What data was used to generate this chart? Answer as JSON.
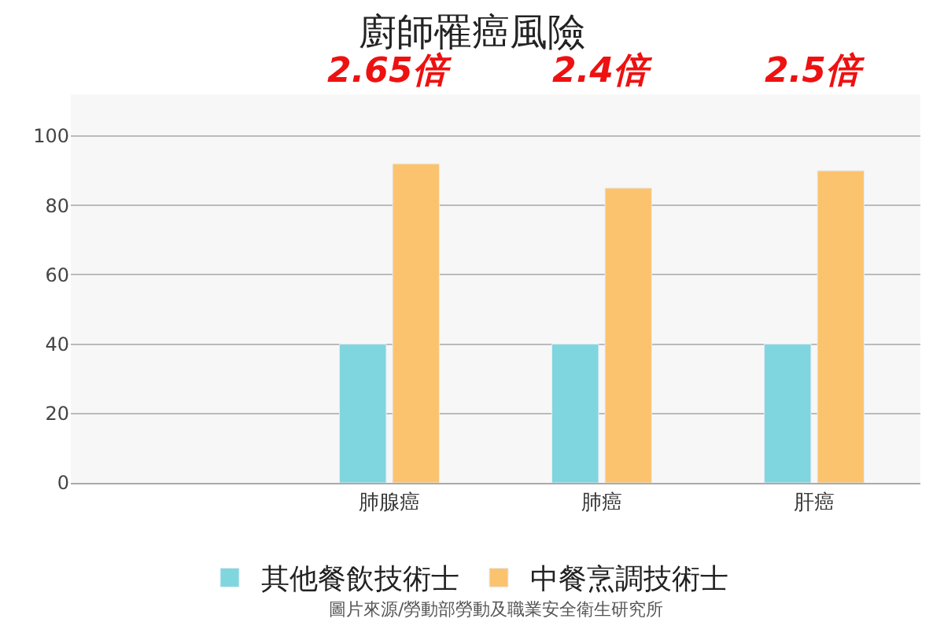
{
  "chart_data": {
    "type": "bar",
    "title": "廚師罹癌風險",
    "categories": [
      null,
      "肺腺癌",
      "肺癌",
      "肝癌"
    ],
    "series": [
      {
        "name": "其他餐飲技術士",
        "color": "#7fd6de",
        "values": [
          null,
          40,
          40,
          40
        ]
      },
      {
        "name": "中餐烹調技術士",
        "color": "#fcc36e",
        "values": [
          null,
          92,
          85,
          90
        ]
      }
    ],
    "ylim": [
      0,
      112
    ],
    "yticks": [
      0,
      20,
      40,
      60,
      80,
      100
    ],
    "grid": "y",
    "legend": "bottom",
    "annotations": [
      "2.65倍",
      "2.4倍",
      "2.5倍",
      "圖片來源/勞動部勞動及職業安全衛生研究所"
    ]
  }
}
